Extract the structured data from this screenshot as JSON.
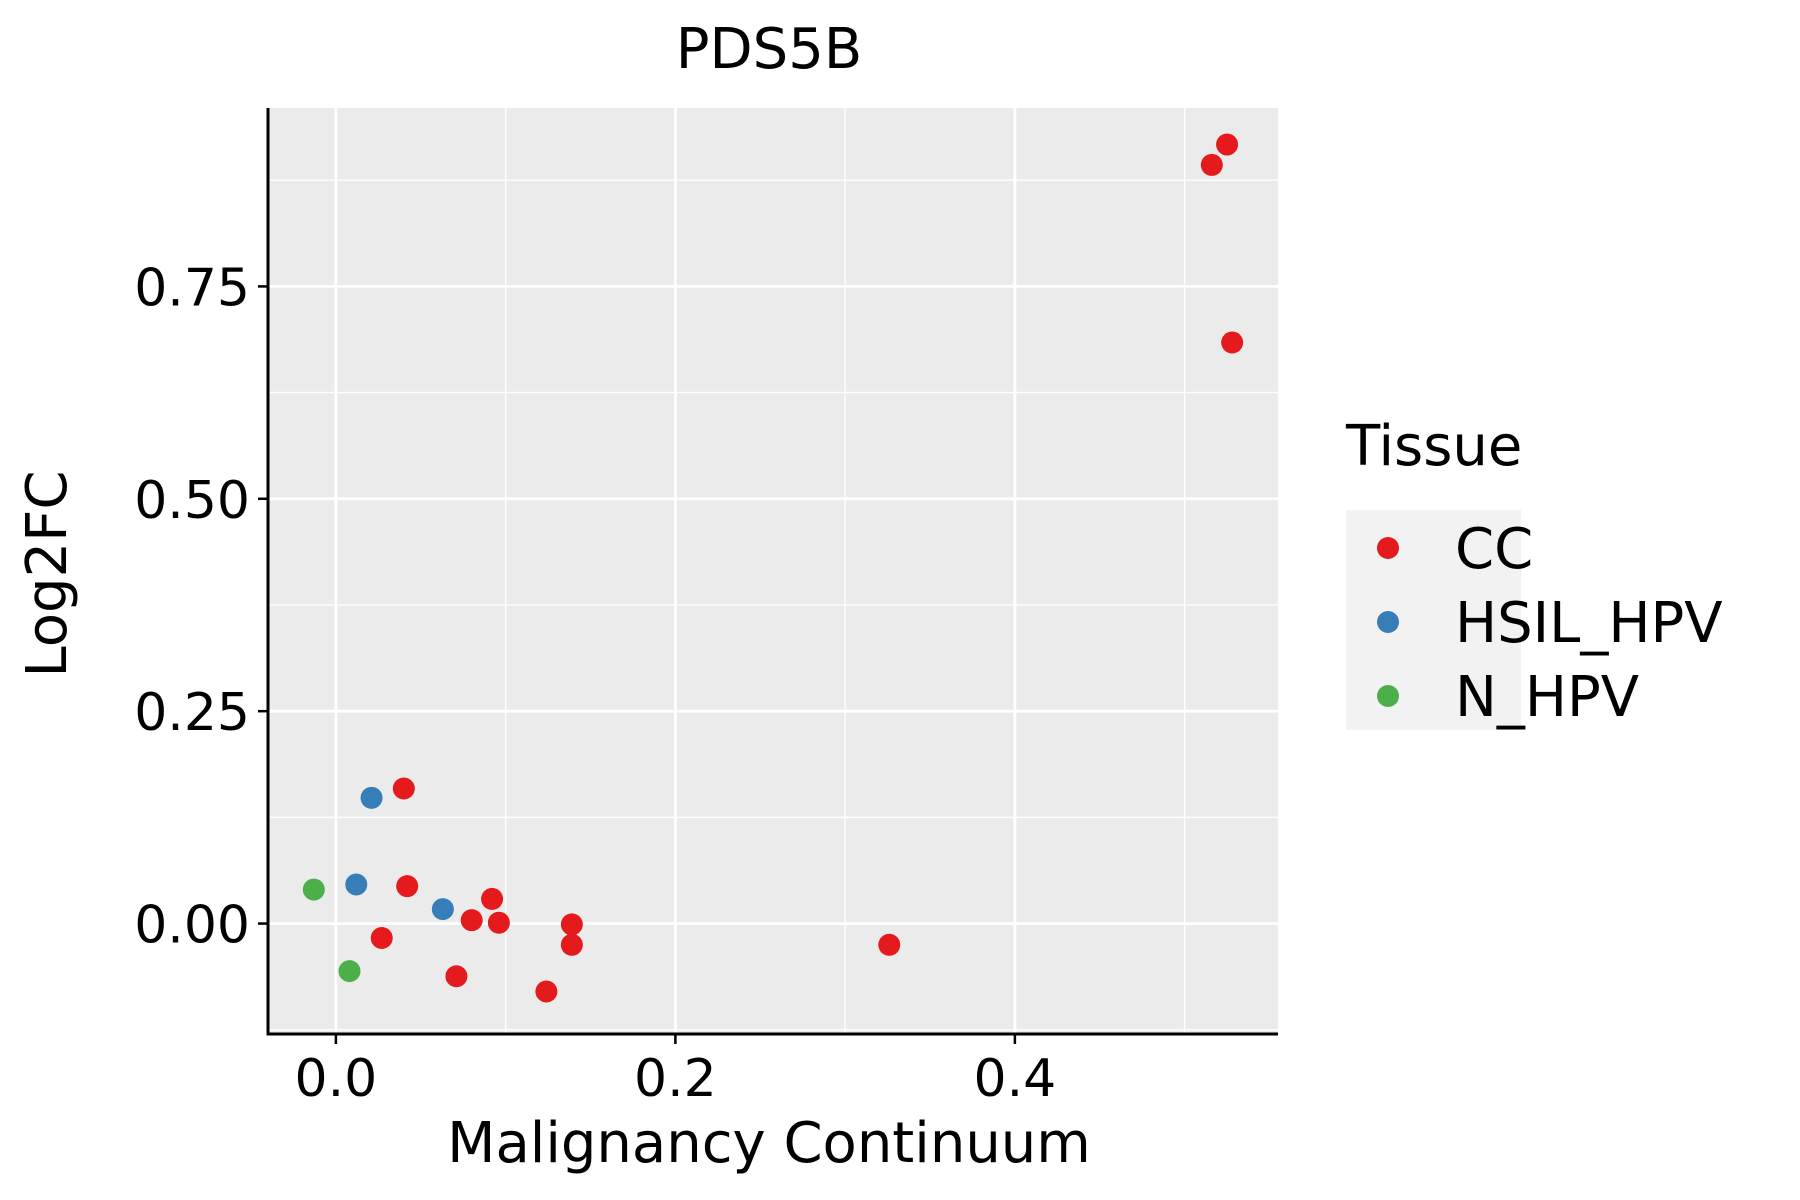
{
  "chart_data": {
    "type": "scatter",
    "title": "PDS5B",
    "xlabel": "Malignancy Continuum",
    "ylabel": "Log2FC",
    "xlim": [
      -0.04,
      0.555
    ],
    "ylim": [
      -0.13,
      0.96
    ],
    "x_ticks": [
      0.0,
      0.2,
      0.4
    ],
    "x_tick_labels": [
      "0.0",
      "0.2",
      "0.4"
    ],
    "y_ticks": [
      0.0,
      0.25,
      0.5,
      0.75
    ],
    "y_tick_labels": [
      "0.00",
      "0.25",
      "0.50",
      "0.75"
    ],
    "grid": true,
    "legend": {
      "title": "Tissue",
      "placement": "right",
      "entries": [
        "CC",
        "HSIL_HPV",
        "N_HPV"
      ]
    },
    "series": [
      {
        "name": "CC",
        "color": "#e41a1c",
        "points": [
          {
            "x": 0.04,
            "y": 0.159
          },
          {
            "x": 0.042,
            "y": 0.044
          },
          {
            "x": 0.027,
            "y": -0.017
          },
          {
            "x": 0.071,
            "y": -0.062
          },
          {
            "x": 0.08,
            "y": 0.004
          },
          {
            "x": 0.092,
            "y": 0.029
          },
          {
            "x": 0.096,
            "y": 0.001
          },
          {
            "x": 0.124,
            "y": -0.08
          },
          {
            "x": 0.139,
            "y": -0.001
          },
          {
            "x": 0.139,
            "y": -0.025
          },
          {
            "x": 0.326,
            "y": -0.025
          },
          {
            "x": 0.516,
            "y": 0.893
          },
          {
            "x": 0.525,
            "y": 0.917
          },
          {
            "x": 0.528,
            "y": 0.684
          }
        ]
      },
      {
        "name": "HSIL_HPV",
        "color": "#377eb8",
        "points": [
          {
            "x": 0.021,
            "y": 0.148
          },
          {
            "x": 0.012,
            "y": 0.046
          },
          {
            "x": 0.063,
            "y": 0.017
          }
        ]
      },
      {
        "name": "N_HPV",
        "color": "#4daf4a",
        "points": [
          {
            "x": -0.013,
            "y": 0.04
          },
          {
            "x": 0.008,
            "y": -0.056
          }
        ]
      }
    ]
  }
}
